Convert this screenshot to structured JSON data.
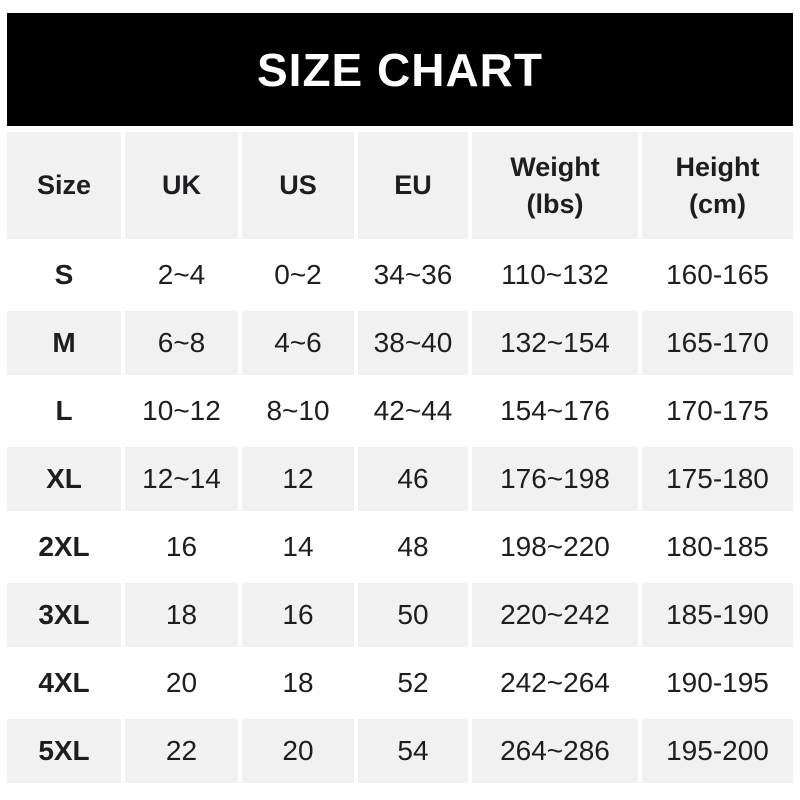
{
  "title": "SIZE CHART",
  "colors": {
    "title_bg": "#000000",
    "title_text": "#ffffff",
    "stripe_bg": "#f1f1f2",
    "row_bg": "#ffffff",
    "text": "#1e1e20"
  },
  "chart_data": {
    "type": "table",
    "title": "SIZE CHART",
    "columns": [
      "Size",
      "UK",
      "US",
      "EU",
      "Weight\n(lbs)",
      "Height\n(cm)"
    ],
    "rows": [
      [
        "S",
        "2~4",
        "0~2",
        "34~36",
        "110~132",
        "160-165"
      ],
      [
        "M",
        "6~8",
        "4~6",
        "38~40",
        "132~154",
        "165-170"
      ],
      [
        "L",
        "10~12",
        "8~10",
        "42~44",
        "154~176",
        "170-175"
      ],
      [
        "XL",
        "12~14",
        "12",
        "46",
        "176~198",
        "175-180"
      ],
      [
        "2XL",
        "16",
        "14",
        "48",
        "198~220",
        "180-185"
      ],
      [
        "3XL",
        "18",
        "16",
        "50",
        "220~242",
        "185-190"
      ],
      [
        "4XL",
        "20",
        "18",
        "52",
        "242~264",
        "190-195"
      ],
      [
        "5XL",
        "22",
        "20",
        "54",
        "264~286",
        "195-200"
      ]
    ],
    "layout": {
      "striped_rows": "even rows shaded",
      "header_shaded": true,
      "first_column_bold": true,
      "header_lines": 2
    }
  }
}
